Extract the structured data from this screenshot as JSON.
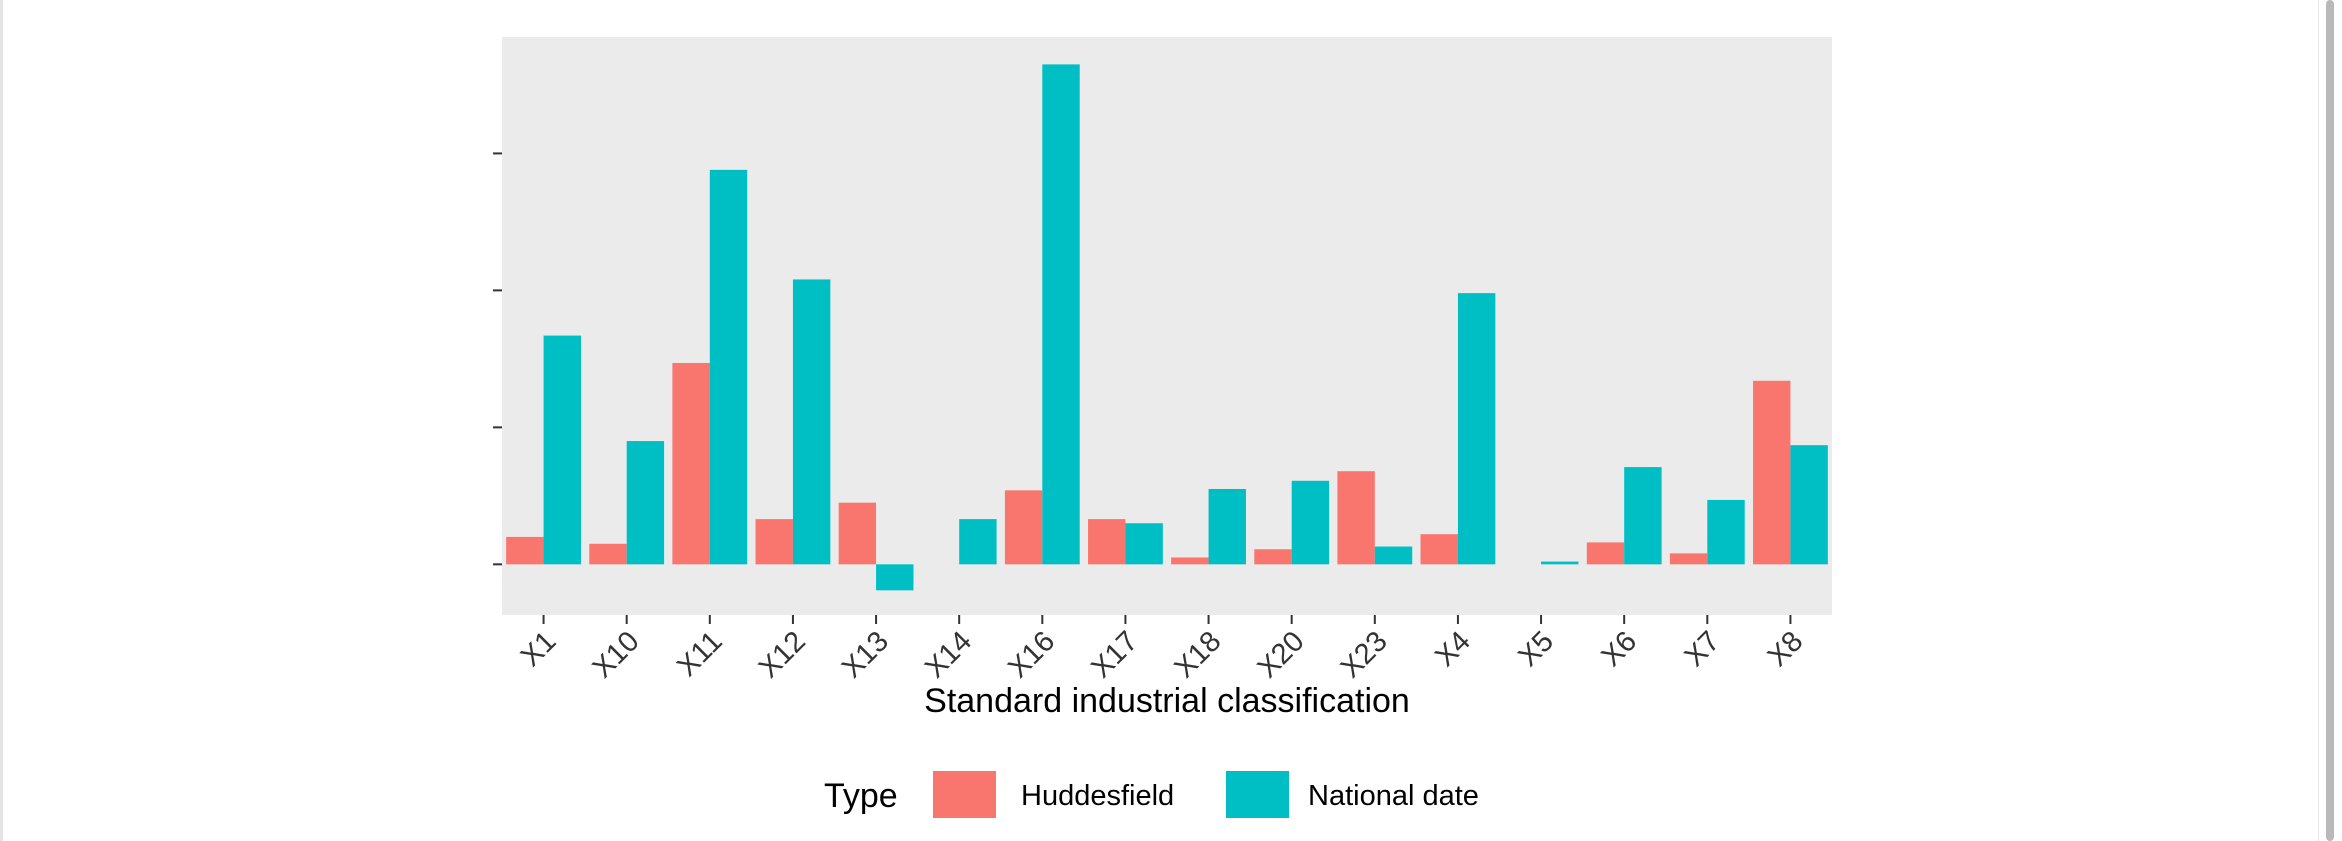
{
  "chart_data": {
    "type": "bar",
    "xlabel": "Standard industrial classification",
    "ylabel": "",
    "categories": [
      "X1",
      "X10",
      "X11",
      "X12",
      "X13",
      "X14",
      "X16",
      "X17",
      "X18",
      "X20",
      "X23",
      "X4",
      "X5",
      "X6",
      "X7",
      "X8"
    ],
    "series": [
      {
        "name": "Huddesfield",
        "color": "#F8766D",
        "values": [
          0.2,
          0.15,
          1.47,
          0.33,
          0.45,
          0.0,
          0.54,
          0.33,
          0.05,
          0.11,
          0.68,
          0.22,
          0.0,
          0.16,
          0.08,
          1.34
        ]
      },
      {
        "name": "National date",
        "color": "#00BFC4",
        "values": [
          1.67,
          0.9,
          2.88,
          2.08,
          -0.19,
          0.33,
          3.65,
          0.3,
          0.55,
          0.61,
          0.13,
          1.98,
          0.02,
          0.71,
          0.47,
          0.87
        ]
      }
    ],
    "ylim": [
      -0.37,
      3.85
    ],
    "legend": {
      "title": "Type",
      "position": "bottom"
    },
    "grid": false,
    "panel_background": "#EBEBEB"
  },
  "viewer": {
    "scrollbar_thumb_color": "#B9B9B9"
  }
}
